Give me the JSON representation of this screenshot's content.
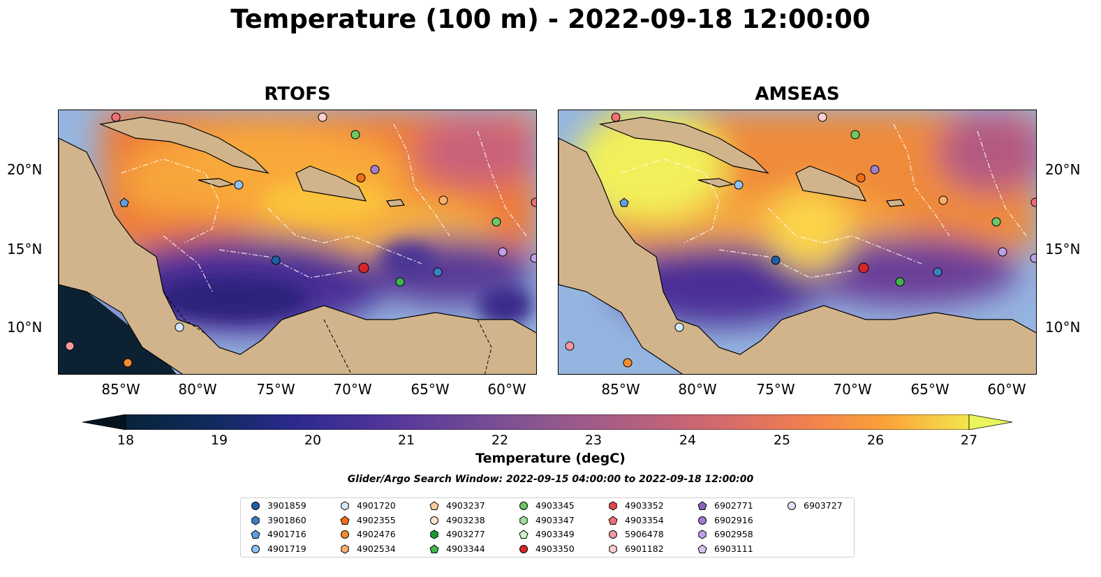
{
  "title": "Temperature (100 m) - 2022-09-18 12:00:00",
  "panels": [
    {
      "title": "RTOFS"
    },
    {
      "title": "AMSEAS"
    }
  ],
  "lon_ticks": [
    "85°W",
    "80°W",
    "75°W",
    "70°W",
    "65°W",
    "60°W"
  ],
  "lat_ticks": [
    "20°N",
    "15°N",
    "10°N"
  ],
  "colorbar": {
    "label": "Temperature (degC)",
    "ticks": [
      "18",
      "19",
      "20",
      "21",
      "22",
      "23",
      "24",
      "25",
      "26",
      "27"
    ],
    "colormap": "thermal",
    "range": [
      18,
      27
    ]
  },
  "search_window": "Glider/Argo Search Window: 2022-09-15 04:00:00 to 2022-09-18 12:00:00",
  "colors": {
    "land": "#d2b48c",
    "ocean": "#95b5e0"
  },
  "legend": [
    {
      "label": "3901859",
      "shape": "circle",
      "color": "#1f5fa6"
    },
    {
      "label": "3901860",
      "shape": "hexagon",
      "color": "#3d7fc4"
    },
    {
      "label": "4901716",
      "shape": "pentagon",
      "color": "#5e9ee0"
    },
    {
      "label": "4901719",
      "shape": "circle",
      "color": "#8fc2f2"
    },
    {
      "label": "4901720",
      "shape": "hexagon",
      "color": "#d2e9fb"
    },
    {
      "label": "4902355",
      "shape": "pentagon",
      "color": "#f06d14"
    },
    {
      "label": "4902476",
      "shape": "circle",
      "color": "#f58c2c"
    },
    {
      "label": "4902534",
      "shape": "hexagon",
      "color": "#fcae6b"
    },
    {
      "label": "4903237",
      "shape": "pentagon",
      "color": "#fbcd9b"
    },
    {
      "label": "4903238",
      "shape": "circle",
      "color": "#fde3c8"
    },
    {
      "label": "4903277",
      "shape": "hexagon",
      "color": "#1d9a32"
    },
    {
      "label": "4903344",
      "shape": "pentagon",
      "color": "#3fb44b"
    },
    {
      "label": "4903345",
      "shape": "circle",
      "color": "#6cc866"
    },
    {
      "label": "4903347",
      "shape": "hexagon",
      "color": "#9fe09b"
    },
    {
      "label": "4903349",
      "shape": "pentagon",
      "color": "#cdf5c6"
    },
    {
      "label": "4903350",
      "shape": "circle",
      "color": "#d62728"
    },
    {
      "label": "4903352",
      "shape": "hexagon",
      "color": "#e4484c"
    },
    {
      "label": "4903354",
      "shape": "pentagon",
      "color": "#ef6f74"
    },
    {
      "label": "5906478",
      "shape": "circle",
      "color": "#f59aa0"
    },
    {
      "label": "6901182",
      "shape": "hexagon",
      "color": "#fbcfd2"
    },
    {
      "label": "6902771",
      "shape": "pentagon",
      "color": "#8a64b8"
    },
    {
      "label": "6902916",
      "shape": "circle",
      "color": "#a27fd0"
    },
    {
      "label": "6902958",
      "shape": "hexagon",
      "color": "#bf9ee6"
    },
    {
      "label": "6903111",
      "shape": "pentagon",
      "color": "#d8c1f3"
    },
    {
      "label": "6903727",
      "shape": "circle",
      "color": "#ecdffb"
    }
  ]
}
